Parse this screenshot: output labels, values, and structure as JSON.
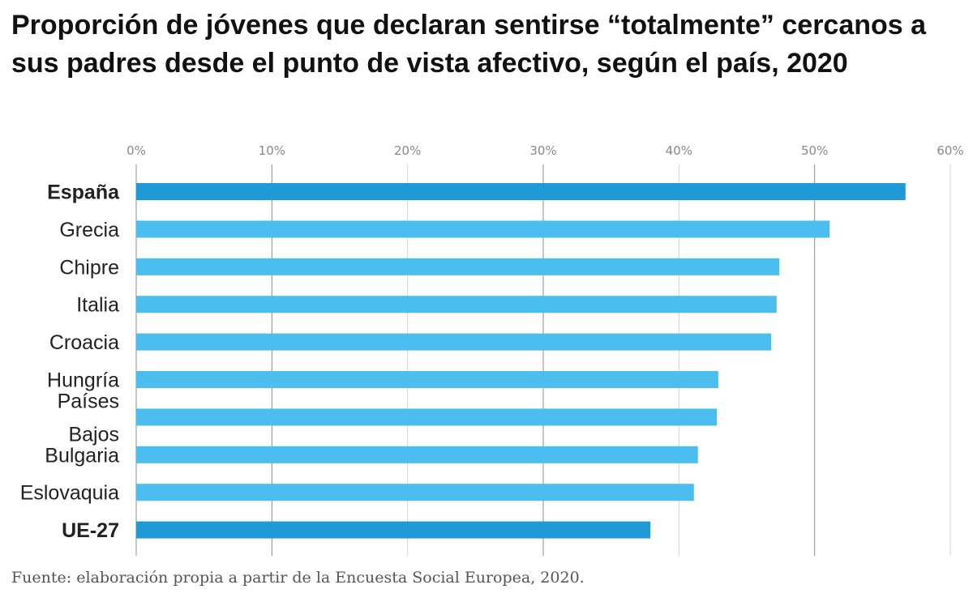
{
  "title": "Proporción de jóvenes que declaran sentirse “totalmente” cercanos a sus padres desde el punto de vista afectivo, según el país, 2020",
  "source": "Fuente: elaboración propia a partir de la Encuesta Social Europea, 2020.",
  "chart_data": {
    "type": "bar",
    "orientation": "horizontal",
    "categories": [
      {
        "lines": [
          "España"
        ],
        "value": 56.7,
        "highlight": true
      },
      {
        "lines": [
          "Grecia"
        ],
        "value": 51.1,
        "highlight": false
      },
      {
        "lines": [
          "Chipre"
        ],
        "value": 47.4,
        "highlight": false
      },
      {
        "lines": [
          "Italia"
        ],
        "value": 47.2,
        "highlight": false
      },
      {
        "lines": [
          "Croacia"
        ],
        "value": 46.8,
        "highlight": false
      },
      {
        "lines": [
          "Hungría"
        ],
        "value": 42.9,
        "highlight": false
      },
      {
        "lines": [
          "Países",
          "Bajos"
        ],
        "value": 42.8,
        "highlight": false
      },
      {
        "lines": [
          "Bulgaria"
        ],
        "value": 41.4,
        "highlight": false
      },
      {
        "lines": [
          "Eslovaquia"
        ],
        "value": 41.1,
        "highlight": false
      },
      {
        "lines": [
          "UE-27"
        ],
        "value": 37.9,
        "highlight": true
      }
    ],
    "x_ticks": [
      "0%",
      "10%",
      "20%",
      "30%",
      "40%",
      "50%",
      "60%"
    ],
    "xlim": [
      0,
      60
    ],
    "axis_position": "top",
    "grid": true,
    "colors": {
      "highlight": "#1f9ad6",
      "default": "#4bbdee",
      "grid": "#d4d4d4",
      "grid_major": "#8c8c8c"
    }
  }
}
